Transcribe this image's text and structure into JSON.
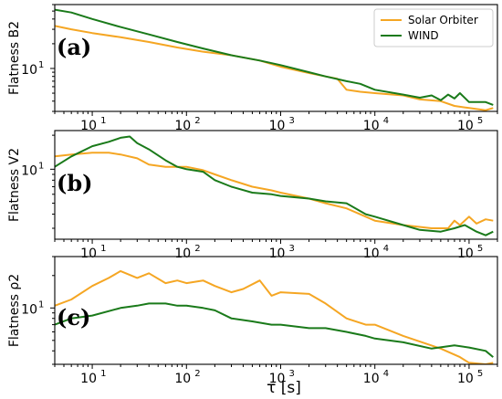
{
  "colors": {
    "solar_orbiter": "#f5a623",
    "wind": "#1a7a1a"
  },
  "xlabel": "τ [s]",
  "xticks": [
    {
      "value": 10,
      "base": "10",
      "exp": "1"
    },
    {
      "value": 100,
      "base": "10",
      "exp": "2"
    },
    {
      "value": 1000,
      "base": "10",
      "exp": "3"
    },
    {
      "value": 10000,
      "base": "10",
      "exp": "4"
    },
    {
      "value": 100000,
      "base": "10",
      "exp": "5"
    }
  ],
  "legend": {
    "placement": "top-right",
    "entries": [
      "Solar Orbiter",
      "WIND"
    ]
  },
  "chart_data": [
    {
      "type": "line",
      "panel_label": "(a)",
      "ylabel": "Flatness B2",
      "xscale": "log",
      "yscale": "log",
      "xlim": [
        4,
        200000
      ],
      "ylim": [
        3,
        60
      ],
      "ytick": {
        "value": 10,
        "base": "10",
        "exp": "1"
      },
      "series": [
        {
          "name": "Solar Orbiter",
          "color": "#f5a623",
          "x": [
            4,
            6,
            10,
            20,
            40,
            80,
            150,
            300,
            600,
            1000,
            2000,
            3000,
            4000,
            5000,
            7000,
            10000,
            20000,
            30000,
            50000,
            70000,
            100000,
            150000,
            180000
          ],
          "y": [
            33,
            30,
            27,
            24,
            21,
            18,
            16,
            14.5,
            12.5,
            10.5,
            8.8,
            8,
            7.5,
            5.5,
            5.2,
            5,
            4.7,
            4.2,
            4,
            3.5,
            3.3,
            3.1,
            3.3
          ]
        },
        {
          "name": "WIND",
          "color": "#1a7a1a",
          "x": [
            4,
            6,
            10,
            20,
            40,
            80,
            150,
            300,
            600,
            1000,
            2000,
            3000,
            5000,
            7000,
            10000,
            20000,
            30000,
            40000,
            50000,
            60000,
            70000,
            80000,
            100000,
            150000,
            180000
          ],
          "y": [
            52,
            48,
            40,
            32,
            26,
            21,
            17.5,
            14.5,
            12.5,
            11,
            9,
            8,
            7,
            6.5,
            5.5,
            4.8,
            4.4,
            4.7,
            4.1,
            4.8,
            4.3,
            5,
            3.9,
            3.9,
            3.6
          ]
        }
      ]
    },
    {
      "type": "line",
      "panel_label": "(b)",
      "ylabel": "Flatness V2",
      "xscale": "log",
      "yscale": "log",
      "xlim": [
        4,
        200000
      ],
      "ylim": [
        2.4,
        22
      ],
      "ytick": {
        "value": 10,
        "base": "10",
        "exp": "1"
      },
      "series": [
        {
          "name": "Solar Orbiter",
          "color": "#f5a623",
          "x": [
            4,
            6,
            10,
            15,
            20,
            30,
            40,
            60,
            80,
            100,
            150,
            200,
            300,
            500,
            800,
            1000,
            2000,
            3000,
            5000,
            8000,
            10000,
            20000,
            40000,
            60000,
            70000,
            80000,
            100000,
            120000,
            150000,
            180000
          ],
          "y": [
            13,
            13.5,
            14,
            14,
            13.5,
            12.5,
            11,
            10.5,
            10.5,
            10.5,
            9.8,
            9,
            8,
            7,
            6.5,
            6.2,
            5.5,
            5,
            4.5,
            3.8,
            3.5,
            3.2,
            3,
            3,
            3.5,
            3.2,
            3.8,
            3.3,
            3.6,
            3.5
          ]
        },
        {
          "name": "WIND",
          "color": "#1a7a1a",
          "x": [
            4,
            6,
            10,
            15,
            20,
            25,
            30,
            40,
            60,
            80,
            100,
            150,
            200,
            300,
            500,
            800,
            1000,
            2000,
            3000,
            5000,
            8000,
            10000,
            20000,
            30000,
            50000,
            70000,
            90000,
            120000,
            150000,
            180000
          ],
          "y": [
            10.5,
            13,
            16,
            17.5,
            19,
            19.5,
            17,
            15,
            12,
            10.5,
            10,
            9.5,
            8,
            7,
            6.2,
            6,
            5.8,
            5.5,
            5.2,
            5,
            4,
            3.8,
            3.2,
            2.9,
            2.8,
            3,
            3.2,
            2.8,
            2.6,
            2.8
          ]
        }
      ]
    },
    {
      "type": "line",
      "panel_label": "(c)",
      "ylabel": "Flatness ρ2",
      "xscale": "log",
      "yscale": "log",
      "xlim": [
        4,
        200000
      ],
      "ylim": [
        3,
        30
      ],
      "ytick": {
        "value": 10,
        "base": "10",
        "exp": "1"
      },
      "series": [
        {
          "name": "Solar Orbiter",
          "color": "#f5a623",
          "x": [
            4,
            6,
            10,
            15,
            20,
            30,
            40,
            60,
            80,
            100,
            150,
            200,
            300,
            400,
            600,
            800,
            1000,
            2000,
            3000,
            5000,
            8000,
            10000,
            20000,
            50000,
            80000,
            100000,
            150000,
            180000
          ],
          "y": [
            10.5,
            12,
            16,
            19,
            22,
            19,
            21,
            17,
            18,
            17,
            18,
            16,
            14,
            15,
            18,
            13,
            14,
            13.5,
            11,
            8,
            7,
            7,
            5.5,
            4.2,
            3.5,
            3.1,
            3,
            3.1
          ]
        },
        {
          "name": "WIND",
          "color": "#1a7a1a",
          "x": [
            4,
            6,
            10,
            20,
            30,
            40,
            60,
            80,
            100,
            150,
            200,
            300,
            500,
            800,
            1000,
            2000,
            3000,
            5000,
            8000,
            10000,
            20000,
            40000,
            70000,
            100000,
            150000,
            180000
          ],
          "y": [
            7,
            8,
            8.5,
            10,
            10.5,
            11,
            11,
            10.5,
            10.5,
            10,
            9.5,
            8,
            7.5,
            7,
            7,
            6.5,
            6.5,
            6,
            5.5,
            5.2,
            4.8,
            4.2,
            4.5,
            4.3,
            4,
            3.5
          ]
        }
      ]
    }
  ]
}
